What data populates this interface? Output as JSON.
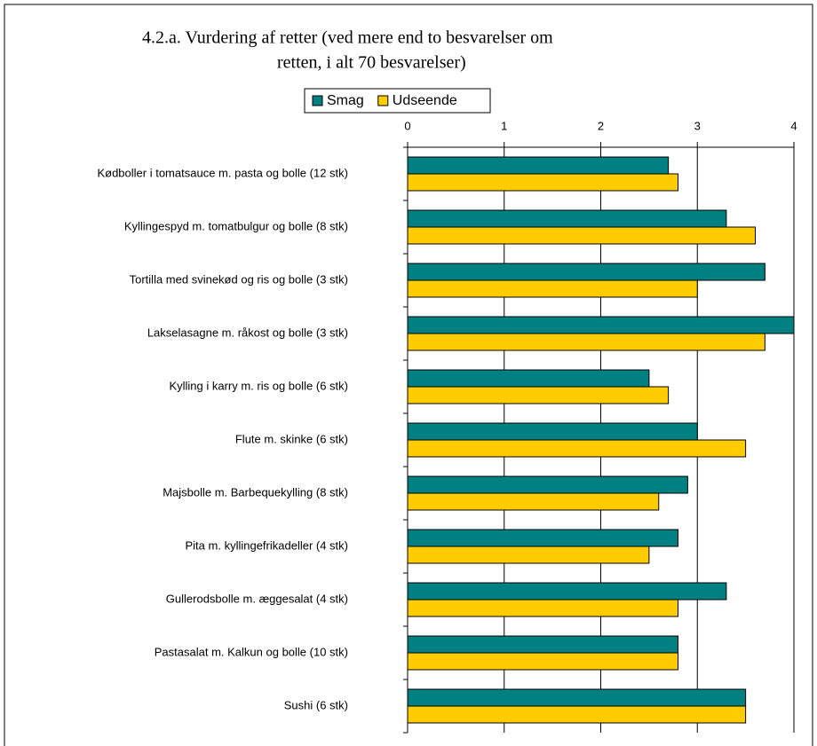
{
  "chart_data": {
    "type": "hbar",
    "title": [
      "4.2.a. Vurdering af retter (ved mere end to besvarelser om",
      "retten, i alt 70 besvarelser)"
    ],
    "categories": [
      "Kødboller i tomatsauce m. pasta og bolle (12 stk)",
      "Kyllingespyd m. tomatbulgur og bolle (8 stk)",
      "Tortilla med svinekød og ris og bolle (3 stk)",
      "Lakselasagne m. råkost og bolle (3 stk)",
      "Kylling i karry m. ris og bolle (6 stk)",
      "Flute m. skinke (6 stk)",
      "Majsbolle m. Barbequekylling (8 stk)",
      "Pita m. kyllingefrikadeller (4 stk)",
      "Gullerodsbolle m. æggesalat (4 stk)",
      "Pastasalat m. Kalkun og bolle (10 stk)",
      "Sushi (6 stk)"
    ],
    "series": [
      {
        "name": "Smag",
        "color": "#008080",
        "values": [
          2.7,
          3.3,
          3.7,
          4.0,
          2.5,
          3.0,
          2.9,
          2.8,
          3.3,
          2.8,
          3.5
        ]
      },
      {
        "name": "Udseende",
        "color": "#ffcc00",
        "values": [
          2.8,
          3.6,
          3.0,
          3.7,
          2.7,
          3.5,
          2.6,
          2.5,
          2.8,
          2.8,
          3.5
        ]
      }
    ],
    "xlim": [
      0,
      4
    ],
    "xticks": [
      0,
      1,
      2,
      3,
      4
    ],
    "grid": true,
    "legend": "top"
  }
}
